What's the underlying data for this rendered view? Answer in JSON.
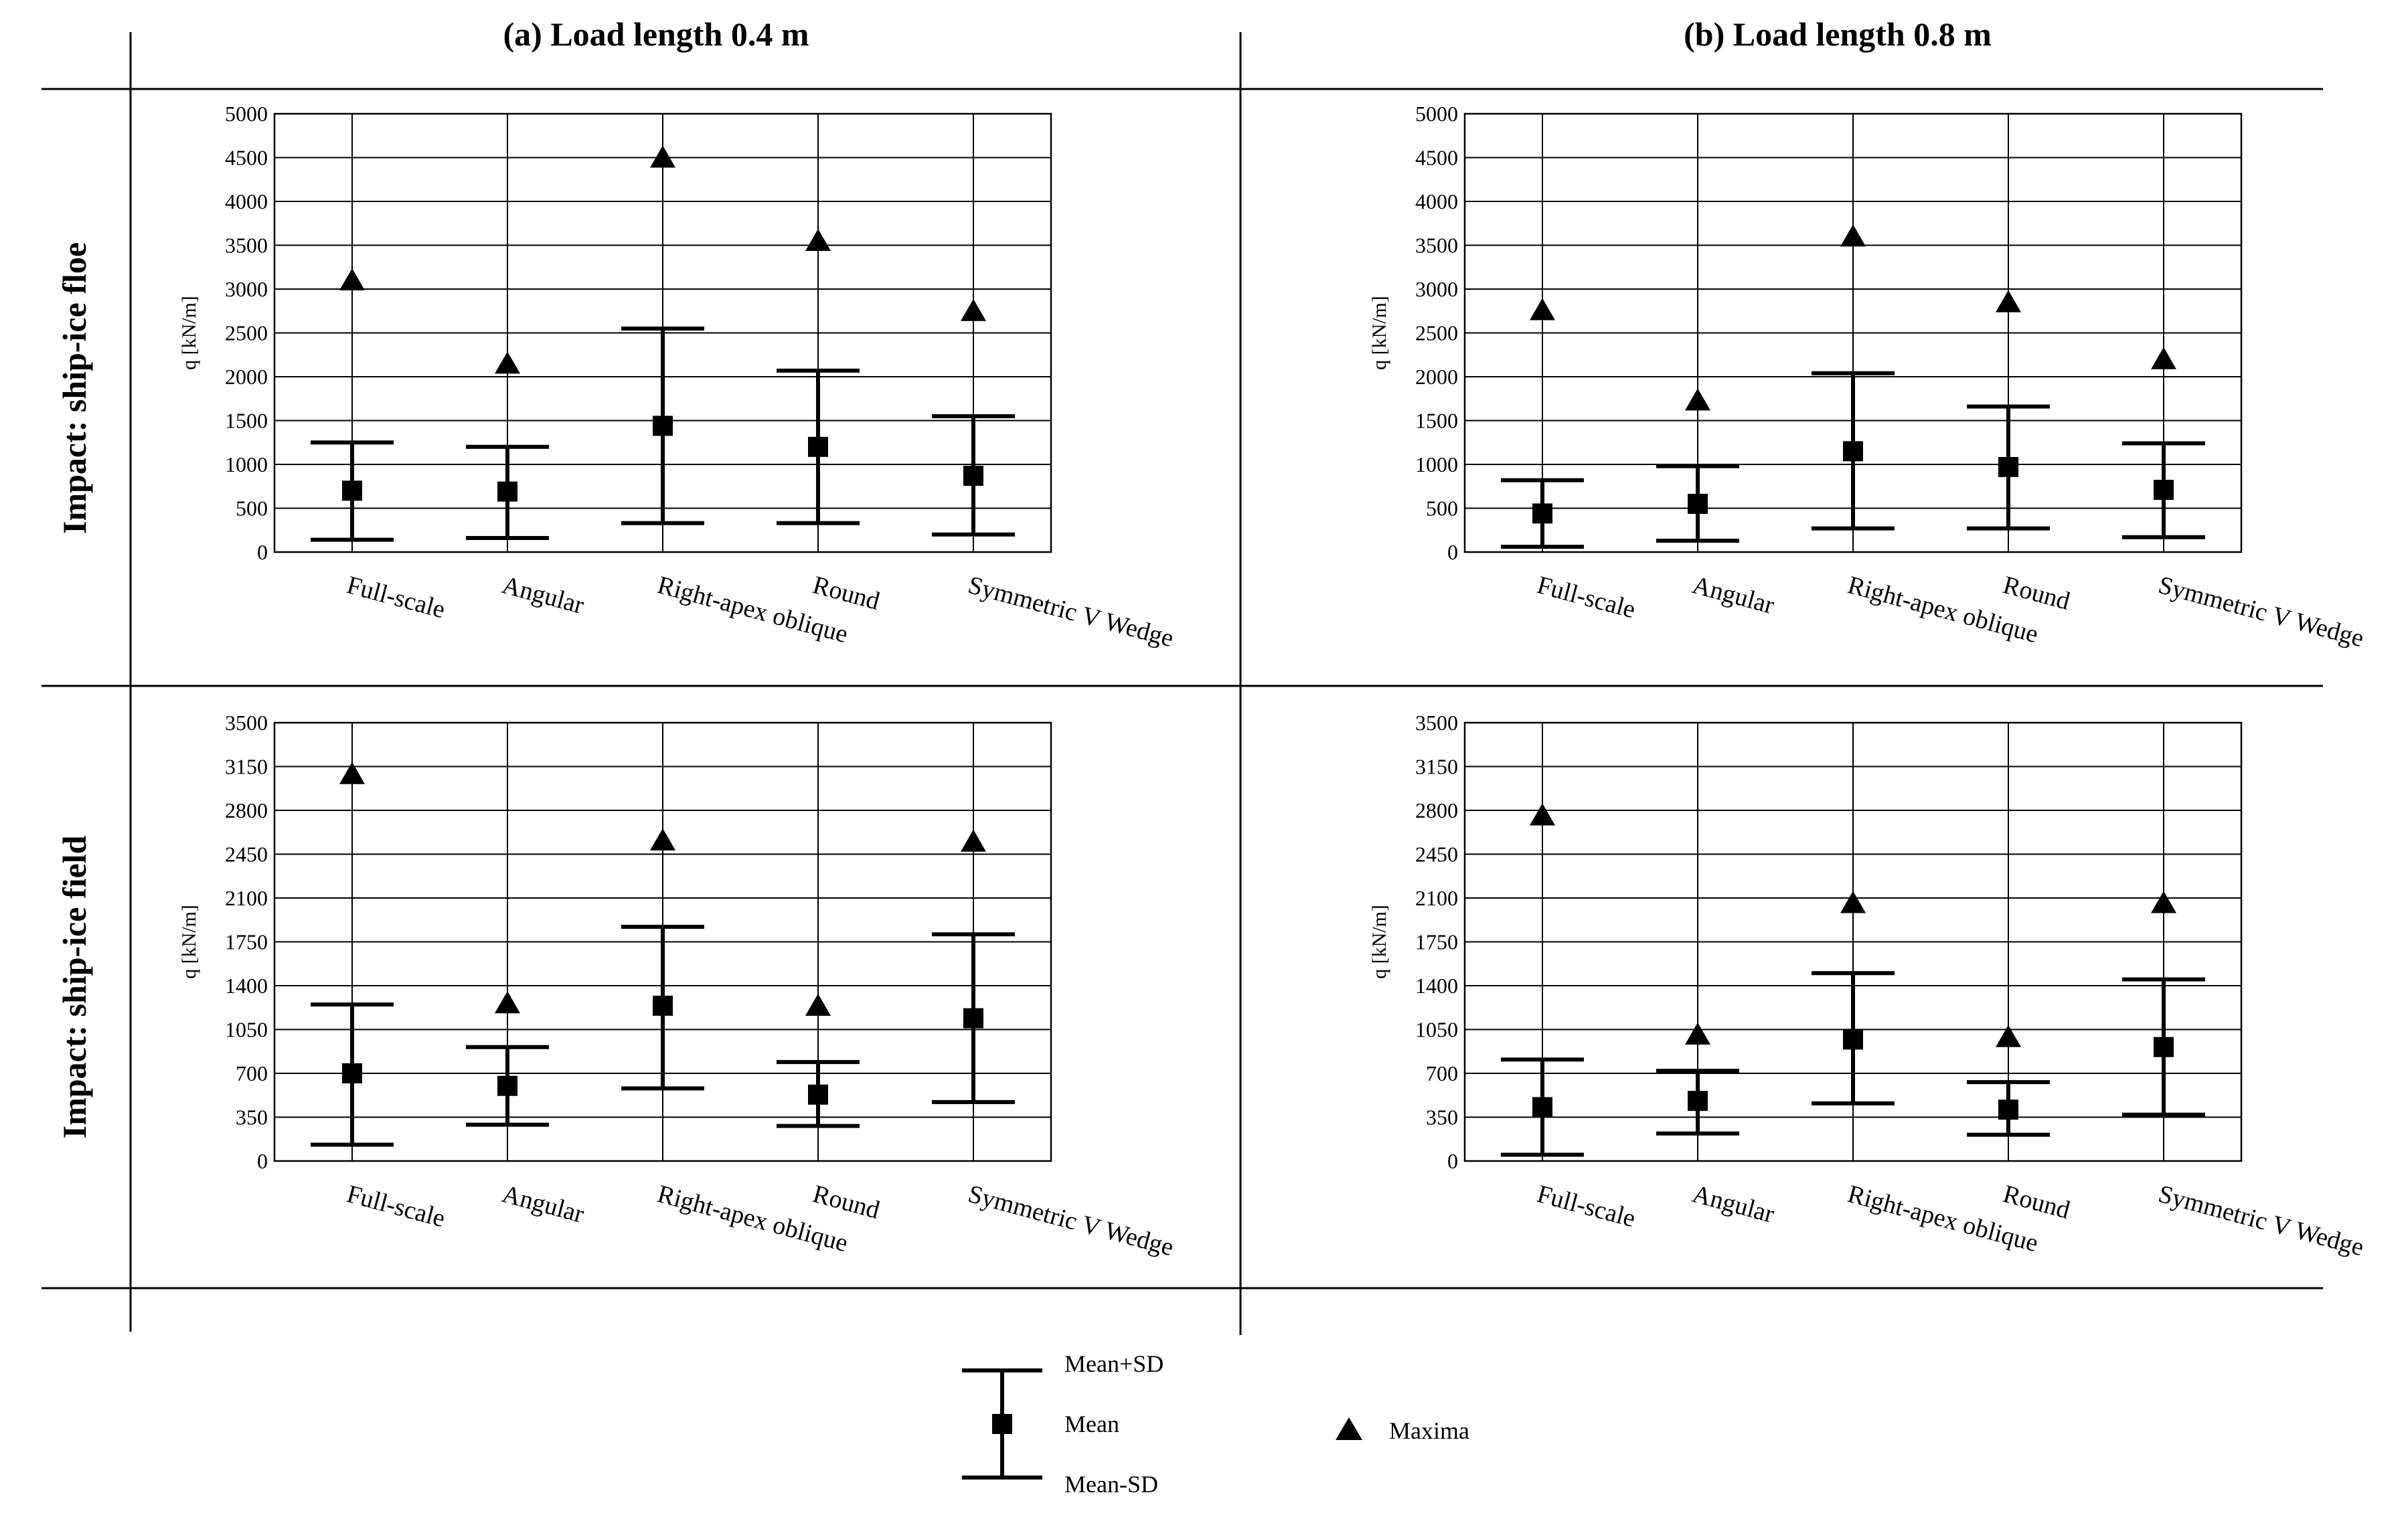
{
  "legend": {
    "mean_plus_sd": "Mean+SD",
    "mean": "Mean",
    "mean_minus_sd": "Mean-SD",
    "maxima": "Maxima"
  },
  "col_titles": [
    "(a) Load length 0.4 m",
    "(b) Load length 0.8 m"
  ],
  "row_titles": [
    "Impact: ship-ice floe",
    "Impact: ship-ice field"
  ],
  "chart_data": [
    {
      "type": "errorbar",
      "title": "(a) Load length 0.4 m — Impact: ship-ice floe",
      "ylabel": "q [kN/m]",
      "ylim": [
        0,
        5000
      ],
      "yticks": [
        0,
        500,
        1000,
        1500,
        2000,
        2500,
        3000,
        3500,
        4000,
        4500,
        5000
      ],
      "categories": [
        "Full-scale",
        "Angular",
        "Right-apex oblique",
        "Round",
        "Symmetric V Wedge"
      ],
      "mean": [
        700,
        690,
        1440,
        1200,
        870
      ],
      "mean_plus_sd": [
        1250,
        1200,
        2550,
        2070,
        1550
      ],
      "mean_minus_sd": [
        140,
        160,
        330,
        330,
        200
      ],
      "maxima": [
        3100,
        2150,
        4500,
        3550,
        2750
      ]
    },
    {
      "type": "errorbar",
      "title": "(b) Load length 0.8 m — Impact: ship-ice floe",
      "ylabel": "q [kN/m]",
      "ylim": [
        0,
        5000
      ],
      "yticks": [
        0,
        500,
        1000,
        1500,
        2000,
        2500,
        3000,
        3500,
        4000,
        4500,
        5000
      ],
      "categories": [
        "Full-scale",
        "Angular",
        "Right-apex oblique",
        "Round",
        "Symmetric V Wedge"
      ],
      "mean": [
        440,
        550,
        1150,
        970,
        710
      ],
      "mean_plus_sd": [
        820,
        980,
        2040,
        1660,
        1240
      ],
      "mean_minus_sd": [
        60,
        130,
        270,
        270,
        170
      ],
      "maxima": [
        2760,
        1730,
        3600,
        2850,
        2200
      ]
    },
    {
      "type": "errorbar",
      "title": "(a) Load length 0.4 m — Impact: ship-ice field",
      "ylabel": "q [kN/m]",
      "ylim": [
        0,
        3500
      ],
      "yticks": [
        0,
        350,
        700,
        1050,
        1400,
        1750,
        2100,
        2450,
        2800,
        3150,
        3500
      ],
      "categories": [
        "Full-scale",
        "Angular",
        "Right-apex oblique",
        "Round",
        "Symmetric V Wedge"
      ],
      "mean": [
        700,
        600,
        1240,
        530,
        1140
      ],
      "mean_plus_sd": [
        1250,
        910,
        1870,
        790,
        1810
      ],
      "mean_minus_sd": [
        130,
        290,
        580,
        280,
        470
      ],
      "maxima": [
        3090,
        1260,
        2560,
        1240,
        2550
      ]
    },
    {
      "type": "errorbar",
      "title": "(b) Load length 0.8 m — Impact: ship-ice field",
      "ylabel": "q [kN/m]",
      "ylim": [
        0,
        3500
      ],
      "yticks": [
        0,
        350,
        700,
        1050,
        1400,
        1750,
        2100,
        2450,
        2800,
        3150,
        3500
      ],
      "categories": [
        "Full-scale",
        "Angular",
        "Right-apex oblique",
        "Round",
        "Symmetric V Wedge"
      ],
      "mean": [
        430,
        480,
        970,
        410,
        910
      ],
      "mean_plus_sd": [
        810,
        720,
        1500,
        630,
        1450
      ],
      "mean_minus_sd": [
        50,
        220,
        460,
        210,
        370
      ],
      "maxima": [
        2760,
        1010,
        2060,
        990,
        2060
      ]
    }
  ]
}
